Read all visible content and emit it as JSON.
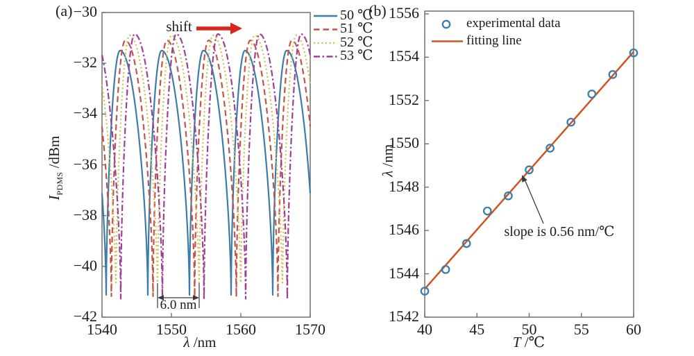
{
  "figure": {
    "panel_a_label": "(a)",
    "panel_b_label": "(b)"
  },
  "colors": {
    "axis": "#666662",
    "text": "#1c1c1c",
    "background": "#ffffff",
    "annotation_arrow": "#3a3a3a"
  },
  "chart_data": [
    {
      "id": "panel-a",
      "type": "line",
      "xlabel": {
        "var": "λ",
        "rest": " /nm"
      },
      "ylabel": {
        "main": "I",
        "sub": "PDMS",
        "rest": " /dBm"
      },
      "xlim": [
        1540,
        1570
      ],
      "ylim": [
        -42,
        -30
      ],
      "xticks": [
        "1540",
        "1550",
        "1560",
        "1570"
      ],
      "xtick_values": [
        1540,
        1550,
        1560,
        1570
      ],
      "yticks": [
        "−30",
        "−32",
        "−34",
        "−36",
        "−38",
        "−40",
        "−42"
      ],
      "ytick_values": [
        -30,
        -32,
        -34,
        -36,
        -38,
        -40,
        -42
      ],
      "grid": false,
      "legend_position": "outside-top-right",
      "fringe_period_nm": 6.0,
      "series": [
        {
          "name": "50 ℃",
          "color": "#3d7ca8",
          "line_style": "solid",
          "first_min_nm": 1540.6,
          "rise_nm": 2.0,
          "fall_nm": 4.0,
          "peak_dbm": -31.5,
          "trough_dbm": -41.15
        },
        {
          "name": "51 ℃",
          "color": "#c3544a",
          "line_style": "dashed",
          "first_min_nm": 1541.35,
          "rise_nm": 2.0,
          "fall_nm": 4.0,
          "peak_dbm": -31.1,
          "trough_dbm": -41.2
        },
        {
          "name": "52 ℃",
          "color": "#d2c152",
          "line_style": "dotted",
          "first_min_nm": 1542.0,
          "rise_nm": 2.0,
          "fall_nm": 4.0,
          "peak_dbm": -30.9,
          "trough_dbm": -41.2
        },
        {
          "name": "53 ℃",
          "color": "#9e3f94",
          "line_style": "dashdot",
          "first_min_nm": 1542.7,
          "rise_nm": 2.0,
          "fall_nm": 4.0,
          "peak_dbm": -30.85,
          "trough_dbm": -41.3
        }
      ],
      "annotations": {
        "shift_label": "shift",
        "shift_arrow_color": "#d6281e",
        "spacing_label": "6.0 nm",
        "spacing_from_nm": 1548.0,
        "spacing_to_nm": 1554.0
      }
    },
    {
      "id": "panel-b",
      "type": "scatter",
      "xlabel": {
        "var": "T",
        "rest": " /℃"
      },
      "ylabel": {
        "var": "λ",
        "rest": " /nm"
      },
      "xlim": [
        40,
        60
      ],
      "ylim": [
        1542,
        1556
      ],
      "xticks": [
        "40",
        "45",
        "50",
        "55",
        "60"
      ],
      "xtick_values": [
        40,
        45,
        50,
        55,
        60
      ],
      "yticks": [
        "1542",
        "1544",
        "1546",
        "1548",
        "1550",
        "1552",
        "1554",
        "1556"
      ],
      "ytick_values": [
        1542,
        1544,
        1546,
        1548,
        1550,
        1552,
        1554,
        1556
      ],
      "grid": false,
      "legend_position": "inside-top-left",
      "points": {
        "label": "experimental data",
        "color": "#3d7ca8",
        "T": [
          40,
          42,
          44,
          46,
          48,
          50,
          52,
          54,
          56,
          58,
          60
        ],
        "lambda_nm": [
          1543.2,
          1544.2,
          1545.4,
          1546.9,
          1547.6,
          1548.8,
          1549.8,
          1551.0,
          1552.3,
          1553.2,
          1554.2
        ]
      },
      "fit": {
        "label": "fitting line",
        "color": "#d0531f",
        "x": [
          40,
          60
        ],
        "y": [
          1543.3,
          1554.25
        ],
        "slope_nm_per_c": 0.56,
        "annotation": "slope is 0.56 nm/℃"
      }
    }
  ]
}
